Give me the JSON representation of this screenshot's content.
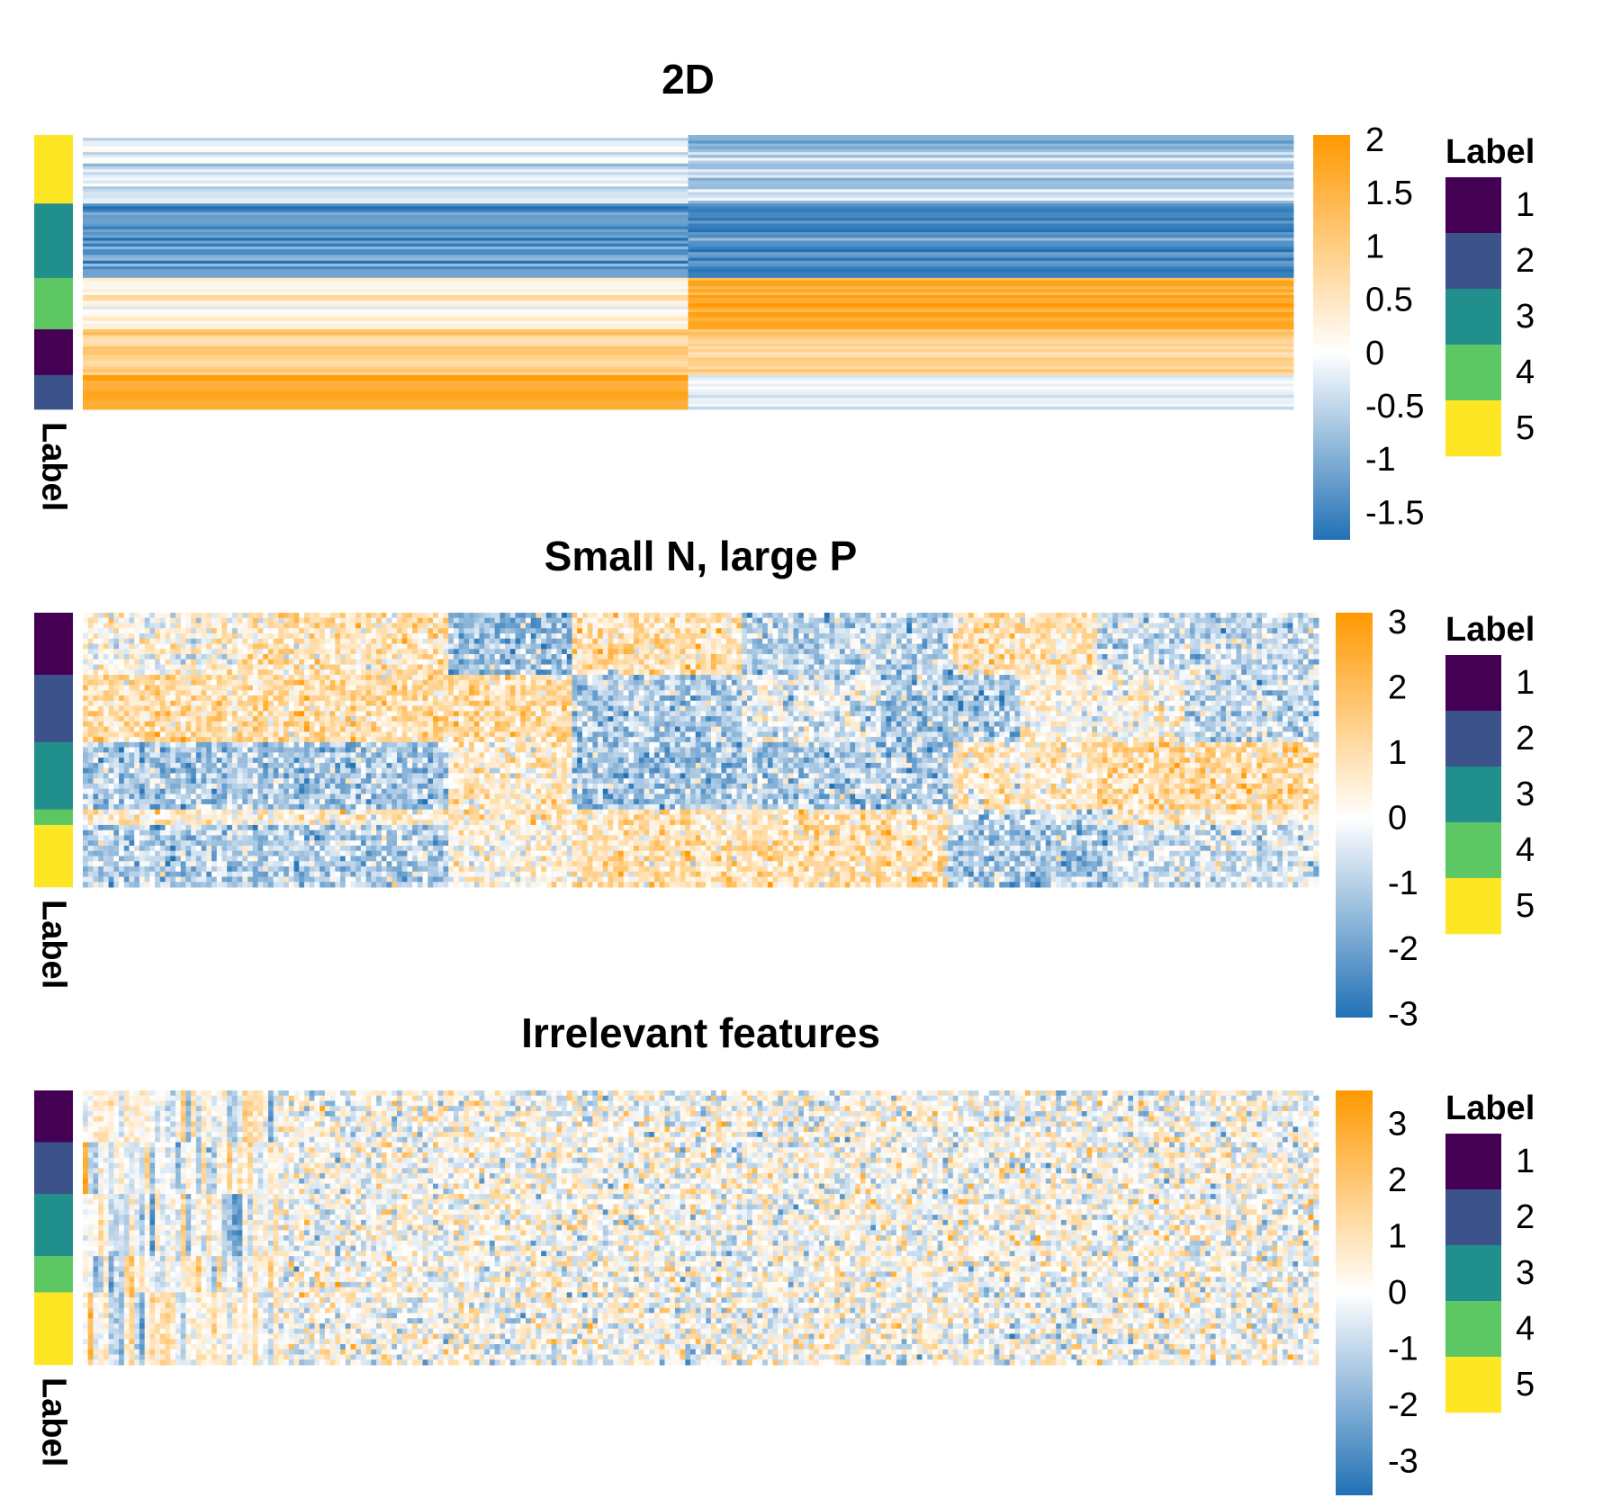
{
  "chart_data": [
    {
      "type": "heatmap",
      "title": "2D",
      "n_columns": 2,
      "row_groups": [
        {
          "label": "5",
          "rows": 24,
          "values": [
            -0.3,
            -0.6
          ],
          "spread": 0.35
        },
        {
          "label": "3",
          "rows": 26,
          "values": [
            -1.4,
            -1.4
          ],
          "spread": 0.3
        },
        {
          "label": "4",
          "rows": 18,
          "values": [
            0.3,
            1.7
          ],
          "spread": 0.25
        },
        {
          "label": "1",
          "rows": 16,
          "values": [
            0.9,
            0.9
          ],
          "spread": 0.25
        },
        {
          "label": "2",
          "rows": 12,
          "values": [
            1.8,
            -0.2
          ],
          "spread": 0.2
        }
      ],
      "annotation_name": "Label",
      "colorbar": {
        "ticks": [
          "2",
          "1.5",
          "1",
          "0.5",
          "0",
          "-0.5",
          "-1",
          "-1.5"
        ],
        "range": [
          -1.75,
          2.05
        ]
      },
      "legend": {
        "title": "Label",
        "entries": [
          "1",
          "2",
          "3",
          "4",
          "5"
        ]
      }
    },
    {
      "type": "heatmap",
      "title": "Small N, large P",
      "n_columns": 240,
      "row_groups": [
        {
          "label": "1",
          "rows": 12
        },
        {
          "label": "2",
          "rows": 13
        },
        {
          "label": "3",
          "rows": 13
        },
        {
          "label": "4",
          "rows": 3
        },
        {
          "label": "5",
          "rows": 12
        }
      ],
      "block_rows": [
        {
          "rows": 12,
          "cells": [
            [
              0,
              32,
              0.2
            ],
            [
              32,
              71,
              0.9
            ],
            [
              71,
              95,
              -1.3
            ],
            [
              95,
              128,
              0.9
            ],
            [
              128,
              169,
              -0.9
            ],
            [
              169,
              197,
              0.9
            ],
            [
              197,
              240,
              -0.7
            ]
          ]
        },
        {
          "rows": 13,
          "cells": [
            [
              0,
              95,
              1.0
            ],
            [
              95,
              128,
              -1.0
            ],
            [
              128,
              155,
              -0.3
            ],
            [
              155,
              182,
              -1.1
            ],
            [
              182,
              214,
              0.2
            ],
            [
              214,
              240,
              -0.8
            ]
          ]
        },
        {
          "rows": 13,
          "cells": [
            [
              0,
              71,
              -1.1
            ],
            [
              71,
              95,
              0.6
            ],
            [
              95,
              128,
              -1.2
            ],
            [
              128,
              169,
              -1.0
            ],
            [
              169,
              197,
              0.6
            ],
            [
              197,
              240,
              1.1
            ]
          ]
        },
        {
          "rows": 3,
          "cells": [
            [
              0,
              95,
              0.6
            ],
            [
              95,
              168,
              0.8
            ],
            [
              168,
              200,
              -0.6
            ],
            [
              200,
              240,
              0.4
            ]
          ]
        },
        {
          "rows": 12,
          "cells": [
            [
              0,
              71,
              -1.0
            ],
            [
              71,
              95,
              0.2
            ],
            [
              95,
              168,
              0.9
            ],
            [
              168,
              200,
              -1.2
            ],
            [
              200,
              240,
              -0.6
            ]
          ]
        }
      ],
      "noise": 0.75,
      "annotation_name": "Label",
      "colorbar": {
        "ticks": [
          "3",
          "2",
          "1",
          "0",
          "-1",
          "-2",
          "-3"
        ],
        "range": [
          -3.05,
          3.15
        ]
      },
      "legend": {
        "title": "Label",
        "entries": [
          "1",
          "2",
          "3",
          "4",
          "5"
        ]
      }
    },
    {
      "type": "heatmap",
      "title": "Irrelevant features",
      "n_columns": 240,
      "row_groups": [
        {
          "label": "1",
          "rows": 10
        },
        {
          "label": "2",
          "rows": 10
        },
        {
          "label": "3",
          "rows": 12
        },
        {
          "label": "4",
          "rows": 7
        },
        {
          "label": "5",
          "rows": 14
        }
      ],
      "informative_columns": 38,
      "noise": 1.0,
      "annotation_name": "Label",
      "colorbar": {
        "ticks": [
          "3",
          "2",
          "1",
          "0",
          "-1",
          "-2",
          "-3"
        ],
        "range": [
          -3.6,
          3.6
        ]
      },
      "legend": {
        "title": "Label",
        "entries": [
          "1",
          "2",
          "3",
          "4",
          "5"
        ]
      }
    }
  ],
  "colors": {
    "low": "#2171b5",
    "mid": "#ffffff",
    "high": "#ff9900",
    "labels": {
      "1": "#440154",
      "2": "#3b528b",
      "3": "#21908c",
      "4": "#5dc863",
      "5": "#fde725"
    }
  }
}
